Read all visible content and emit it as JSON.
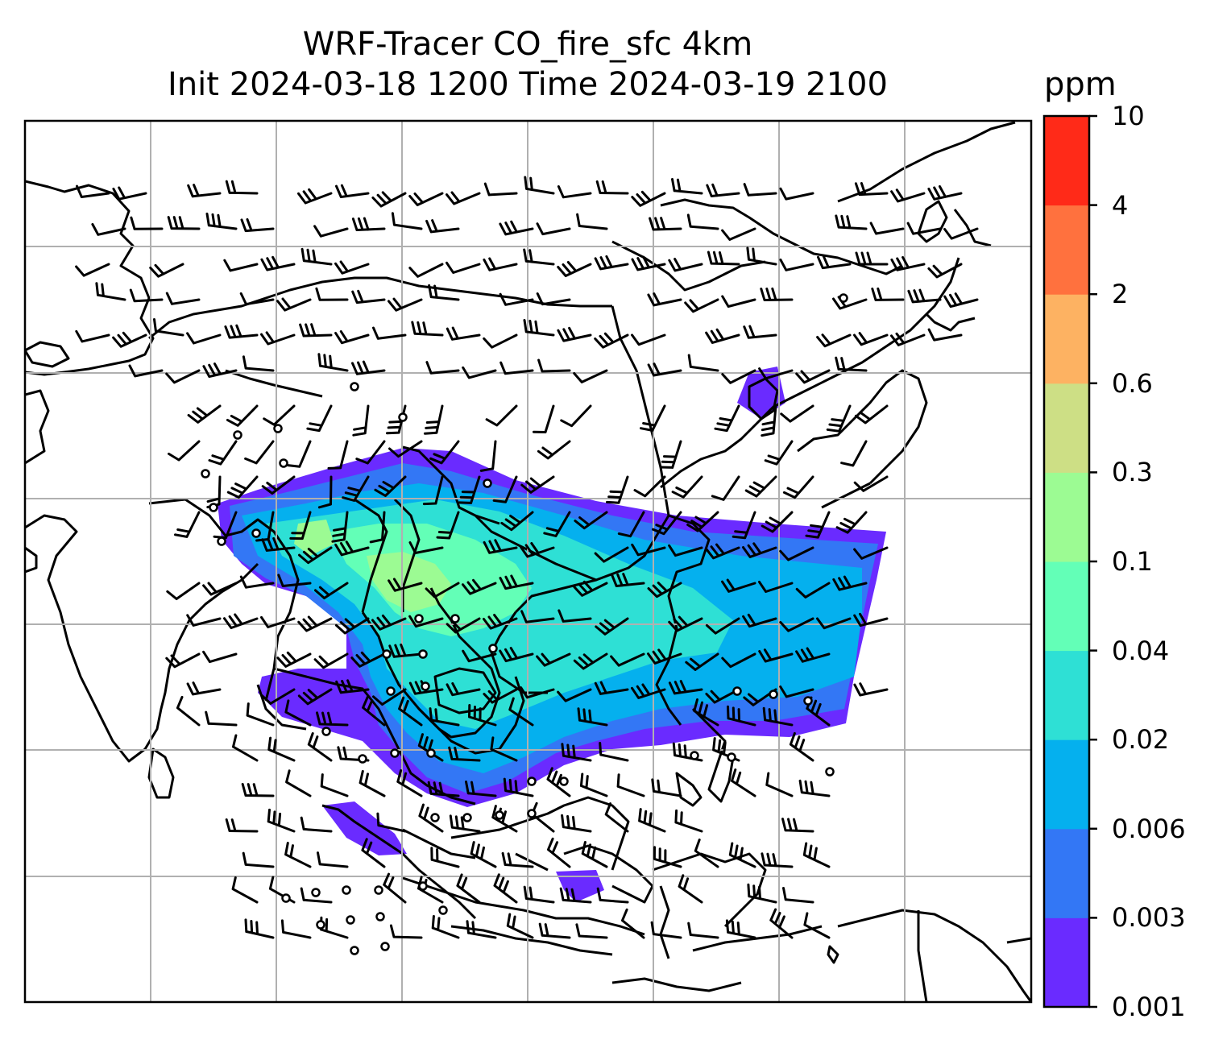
{
  "title": {
    "line1": "WRF-Tracer CO_fire_sfc 4km",
    "line2": "Init 2024-03-18 1200 Time 2024-03-19 2100"
  },
  "colorbar": {
    "unit": "ppm",
    "levels": [
      "0.001",
      "0.003",
      "0.006",
      "0.02",
      "0.04",
      "0.1",
      "0.3",
      "0.6",
      "2",
      "4",
      "10"
    ],
    "colors": [
      "#6a2bff",
      "#3377f5",
      "#05b0ee",
      "#2ee0d5",
      "#63ffb7",
      "#9cfb93",
      "#cddf85",
      "#fdb262",
      "#ff713e",
      "#ff2a18"
    ]
  },
  "map": {
    "field": "CO_fire_sfc",
    "gridlines": true,
    "coastlines": true,
    "overlay": "wind-barbs"
  }
}
